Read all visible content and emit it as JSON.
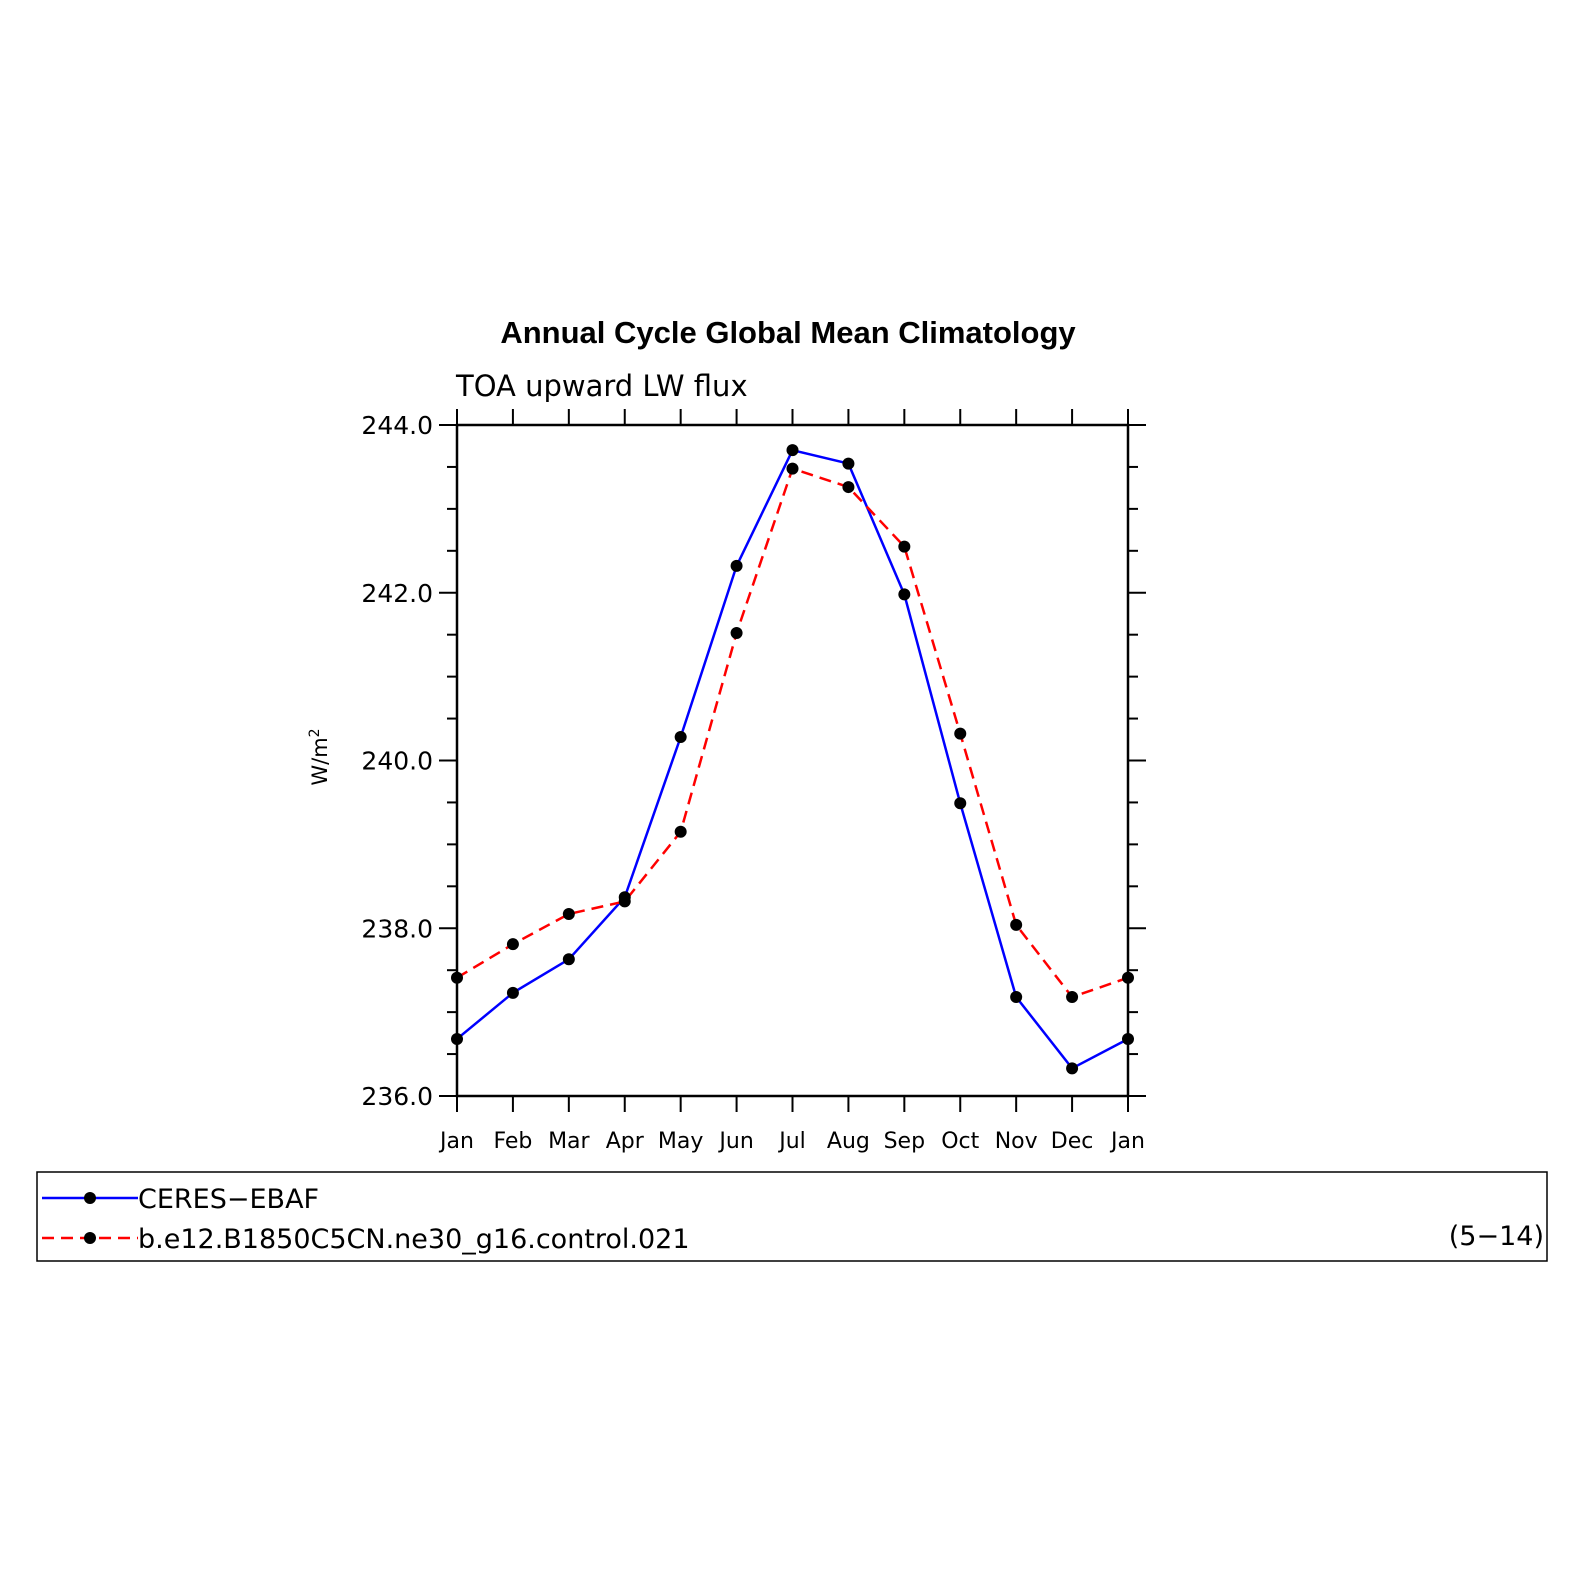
{
  "chart_data": {
    "type": "line",
    "title": "Annual Cycle Global Mean Climatology",
    "subtitle": "TOA upward LW flux",
    "ylabel": "W/m",
    "ylabel_superscript": "2",
    "ylabel_full": "W/m²",
    "xlabel": "",
    "categories": [
      "Jan",
      "Feb",
      "Mar",
      "Apr",
      "May",
      "Jun",
      "Jul",
      "Aug",
      "Sep",
      "Oct",
      "Nov",
      "Dec",
      "Jan"
    ],
    "ylim": [
      236.0,
      244.0
    ],
    "yticks_major": [
      "236.0",
      "238.0",
      "240.0",
      "242.0",
      "244.0"
    ],
    "ytick_values": [
      236,
      238,
      240,
      242,
      244
    ],
    "grid": false,
    "legend_position": "bottom",
    "series": [
      {
        "name": "CERES−EBAF",
        "color": "#0000ff",
        "style": "solid",
        "values": [
          236.68,
          237.23,
          237.63,
          238.37,
          240.28,
          242.32,
          243.7,
          243.54,
          241.98,
          239.49,
          237.18,
          236.33,
          236.68
        ]
      },
      {
        "name": "b.e12.B1850C5CN.ne30_g16.control.021",
        "color": "#ff0000",
        "style": "dashed",
        "values": [
          237.41,
          237.81,
          238.17,
          238.32,
          239.15,
          241.52,
          243.48,
          243.26,
          242.55,
          240.32,
          238.04,
          237.18,
          237.41
        ]
      }
    ],
    "annotation": "(5−14)"
  },
  "colors": {
    "axis": "#000000",
    "marker": "#000000"
  }
}
